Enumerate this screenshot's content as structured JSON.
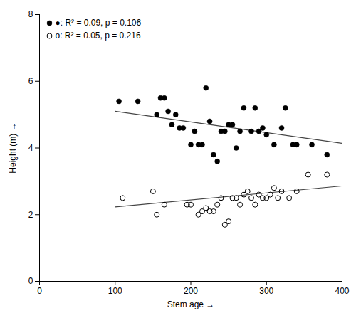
{
  "chart_data": {
    "type": "scatter",
    "xlabel": "Stem age",
    "ylabel": "Height (m)",
    "xlim": [
      0,
      400
    ],
    "xticks": [
      0,
      100,
      200,
      300,
      400
    ],
    "ylim": [
      0,
      8
    ],
    "yticks": [
      0,
      2,
      4,
      6,
      8
    ],
    "grid": false,
    "legend": "upper left",
    "series": [
      {
        "name": "●: R² = 0.09, p = 0.106",
        "type": "scatter",
        "marker": "filled_circle",
        "color": "#000000",
        "x": [
          105,
          130,
          155,
          160,
          165,
          170,
          175,
          180,
          185,
          190,
          200,
          205,
          210,
          215,
          220,
          225,
          230,
          235,
          240,
          245,
          250,
          255,
          260,
          265,
          270,
          280,
          285,
          290,
          295,
          300,
          310,
          320,
          325,
          335,
          340,
          360,
          380
        ],
        "values": [
          5.4,
          5.4,
          5.0,
          5.5,
          5.5,
          5.1,
          4.7,
          5.0,
          4.6,
          4.6,
          4.1,
          4.5,
          4.1,
          4.1,
          5.8,
          4.8,
          3.8,
          3.6,
          4.5,
          4.5,
          4.7,
          4.7,
          4.0,
          4.5,
          5.2,
          4.5,
          5.2,
          4.5,
          4.6,
          4.4,
          4.1,
          4.6,
          5.2,
          4.1,
          4.1,
          4.1,
          3.8
        ]
      },
      {
        "name": "o: R² = 0.05, p = 0.216",
        "type": "scatter",
        "marker": "open_circle",
        "color": "#000000",
        "x": [
          110,
          150,
          155,
          165,
          195,
          200,
          210,
          215,
          220,
          225,
          230,
          235,
          240,
          245,
          250,
          255,
          260,
          265,
          270,
          275,
          280,
          285,
          290,
          295,
          300,
          305,
          310,
          315,
          320,
          330,
          340,
          355,
          380
        ],
        "values": [
          2.5,
          2.7,
          2.0,
          2.3,
          2.3,
          2.3,
          2.0,
          2.1,
          2.2,
          2.1,
          2.1,
          2.3,
          2.5,
          1.7,
          1.8,
          2.5,
          2.5,
          2.3,
          2.6,
          2.7,
          2.5,
          2.3,
          2.6,
          2.5,
          2.5,
          2.6,
          2.8,
          2.5,
          2.7,
          2.5,
          2.7,
          3.2,
          3.2
        ]
      },
      {
        "type": "line",
        "line_style": "solid",
        "color": "#444444",
        "x": [
          100,
          400
        ],
        "values": [
          5.1,
          4.14
        ]
      },
      {
        "type": "line",
        "line_style": "solid",
        "color": "#444444",
        "x": [
          100,
          400
        ],
        "values": [
          2.23,
          2.86
        ]
      }
    ]
  }
}
